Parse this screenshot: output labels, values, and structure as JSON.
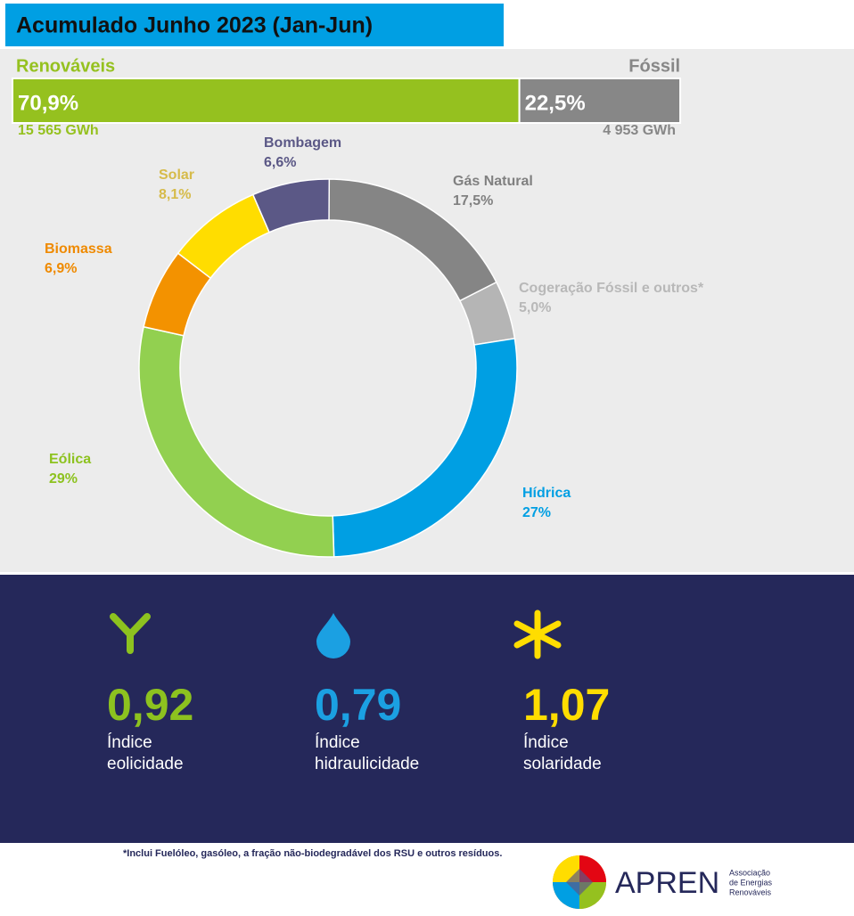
{
  "title": "Acumulado Junho 2023 (Jan-Jun)",
  "chart_data": [
    {
      "type": "stacked-bar",
      "series": [
        {
          "name": "Renováveis",
          "color": "#95c11f",
          "values": [
            70.9
          ],
          "value_labels": [
            "70,9%"
          ],
          "energy": "15 565 GWh"
        },
        {
          "name": "Fóssil",
          "color": "#878787",
          "values": [
            22.5
          ],
          "value_labels": [
            "22,5%"
          ],
          "energy": "4 953 GWh"
        }
      ]
    },
    {
      "type": "donut",
      "categories": [
        "Gás Natural",
        "Cogeração Fóssil e outros*",
        "Hídrica",
        "Eólica",
        "Biomassa",
        "Solar",
        "Bombagem"
      ],
      "values": [
        17.5,
        5.0,
        27,
        29,
        6.9,
        8.1,
        6.6
      ],
      "value_labels": [
        "17,5%",
        "5,0%",
        "27%",
        "29%",
        "6,9%",
        "8,1%",
        "6,6%"
      ],
      "colors": [
        "#858585",
        "#b5b5b5",
        "#009fe3",
        "#92d050",
        "#f39200",
        "#ffdd00",
        "#5b5886"
      ],
      "label_colors": [
        "#808080",
        "#b8b8b8",
        "#009fe3",
        "#8dc21f",
        "#ef8a00",
        "#d6bb4a",
        "#5b5886"
      ]
    }
  ],
  "indices": [
    {
      "value": "0,92",
      "label": [
        "Índice",
        "eolicidade"
      ],
      "color": "#8dc21f"
    },
    {
      "value": "0,79",
      "label": [
        "Índice",
        "hidraulicidade"
      ],
      "color": "#1ba0e2"
    },
    {
      "value": "1,07",
      "label": [
        "Índice",
        "solaridade"
      ],
      "color": "#ffdd00"
    }
  ],
  "footnote": "*Inclui Fuelóleo, gasóleo, a fração não-biodegradável dos RSU e outros resíduos.",
  "logo": {
    "name": "APREN",
    "subtitle": [
      "Associação",
      "de Energias",
      "Renováveis"
    ]
  }
}
